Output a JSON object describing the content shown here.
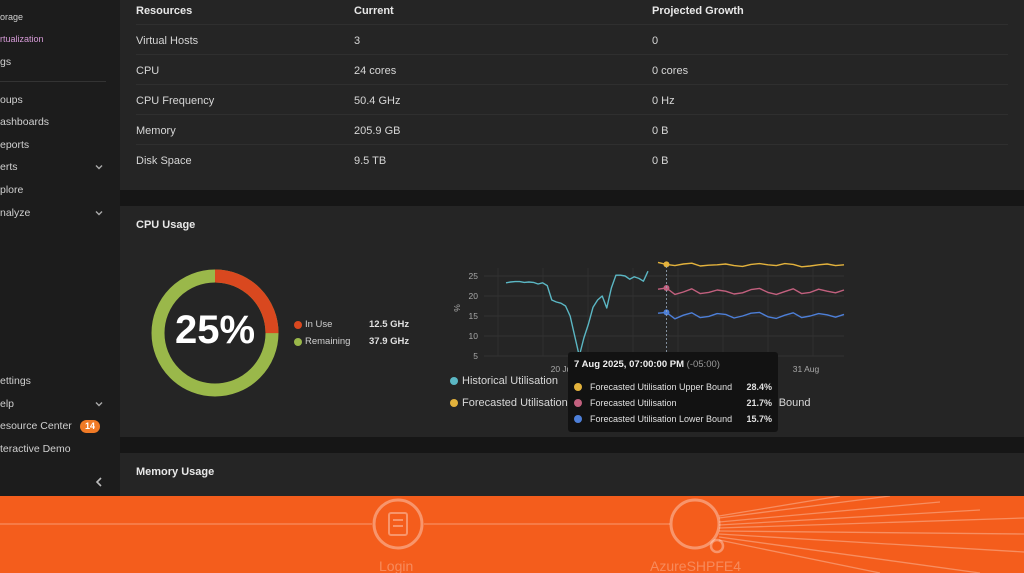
{
  "sidebar": {
    "items": [
      {
        "label": "orage",
        "active": false
      },
      {
        "label": "rtualization",
        "active": true
      },
      {
        "label": "gs",
        "active": false
      },
      {
        "label": "oups",
        "active": false
      },
      {
        "label": "ashboards",
        "active": false
      },
      {
        "label": "eports",
        "active": false
      },
      {
        "label": "erts",
        "active": false,
        "chevron": true
      },
      {
        "label": "plore",
        "active": false
      },
      {
        "label": "nalyze",
        "active": false,
        "chevron": true
      },
      {
        "label": "ettings",
        "active": false
      },
      {
        "label": "elp",
        "active": false,
        "chevron": true
      },
      {
        "label": "esource Center",
        "active": false,
        "badge": "14"
      },
      {
        "label": "teractive Demo",
        "active": false
      }
    ],
    "collapse_icon": "chevron-left-icon",
    "active_color": "#d59ad6"
  },
  "resources_table": {
    "headers": [
      "Resources",
      "Current",
      "Projected Growth"
    ],
    "rows": [
      [
        "Virtual Hosts",
        "3",
        "0"
      ],
      [
        "CPU",
        "24 cores",
        "0 cores"
      ],
      [
        "CPU Frequency",
        "50.4 GHz",
        "0 Hz"
      ],
      [
        "Memory",
        "205.9 GB",
        "0 B"
      ],
      [
        "Disk Space",
        "9.5 TB",
        "0 B"
      ]
    ]
  },
  "cpu_usage": {
    "title": "CPU Usage",
    "percent_label": "25%",
    "in_use_fraction": 0.25,
    "legend": [
      {
        "label": "In Use",
        "value": "12.5 GHz",
        "color": "#d9481f"
      },
      {
        "label": "Remaining",
        "value": "37.9 GHz",
        "color": "#9ab84a"
      }
    ]
  },
  "chart_legend": [
    {
      "label": "Historical Utilisation",
      "color": "#5bb7c4"
    },
    {
      "label": "Forecasted Utilisation",
      "color": "#e3b23c"
    },
    {
      "label": "r Bound",
      "color": null
    }
  ],
  "tooltip": {
    "title": "7 Aug 2025, 07:00:00 PM",
    "timezone": "(-05:00)",
    "rows": [
      {
        "label": "Forecasted Utilisation Upper Bound",
        "value": "28.4%",
        "color": "#e3b23c"
      },
      {
        "label": "Forecasted Utilisation",
        "value": "21.7%",
        "color": "#c2607e"
      },
      {
        "label": "Forecasted Utilisation Lower Bound",
        "value": "15.7%",
        "color": "#4d7fd8"
      }
    ]
  },
  "chart_data": {
    "type": "line",
    "ylabel": "%",
    "y_ticks": [
      "25",
      "20",
      "15",
      "10",
      "5"
    ],
    "ylim": [
      5,
      27
    ],
    "x_tick_labels": [
      "20 Ju",
      "31 Aug"
    ],
    "grid": true,
    "series": [
      {
        "name": "Historical Utilisation",
        "color": "#5bb7c4",
        "values": [
          23.3,
          23.5,
          23.6,
          23.6,
          23.4,
          23.5,
          23.4,
          23.0,
          23.3,
          22.6,
          19.0,
          18.5,
          18.2,
          17.5,
          15.0,
          10.0,
          5.0,
          9.5,
          13.0,
          17.2,
          19.0,
          20.0,
          17.0,
          22.0,
          25.2,
          25.2,
          25.0,
          24.2,
          24.8,
          24.4,
          23.7,
          26.2
        ]
      },
      {
        "name": "Forecasted Utilisation Upper Bound",
        "color": "#e3b23c",
        "values": [
          28.4,
          27.9,
          27.6,
          28.0,
          28.2,
          27.5,
          27.7,
          27.8,
          28.0,
          27.6,
          27.4,
          27.9,
          28.1,
          27.8,
          27.6,
          28.1,
          27.9,
          27.3,
          27.5,
          27.8,
          28.0,
          27.6,
          27.8
        ]
      },
      {
        "name": "Forecasted Utilisation",
        "color": "#c2607e",
        "values": [
          21.7,
          22.0,
          20.4,
          21.0,
          21.8,
          20.6,
          20.9,
          21.5,
          21.2,
          20.5,
          20.8,
          21.6,
          21.9,
          20.9,
          20.4,
          21.1,
          21.8,
          20.6,
          20.9,
          21.7,
          21.2,
          20.8,
          21.5
        ]
      },
      {
        "name": "Forecasted Utilisation Lower Bound",
        "color": "#4d7fd8",
        "values": [
          15.7,
          15.9,
          14.3,
          15.2,
          15.8,
          14.6,
          14.9,
          15.6,
          15.4,
          14.5,
          15.0,
          15.7,
          15.9,
          14.8,
          14.4,
          15.2,
          15.8,
          14.6,
          15.0,
          15.6,
          15.3,
          14.7,
          15.4
        ]
      }
    ],
    "tooltip_date": "7 Aug 2025, 07:00:00 PM"
  },
  "memory_usage": {
    "title": "Memory Usage"
  },
  "banner": {
    "color": "#f45d1c",
    "nodes": [
      {
        "label": "Login",
        "icon": "login-node-icon"
      },
      {
        "label": "AzureSHPFE4",
        "icon": "server-node-icon"
      }
    ]
  }
}
